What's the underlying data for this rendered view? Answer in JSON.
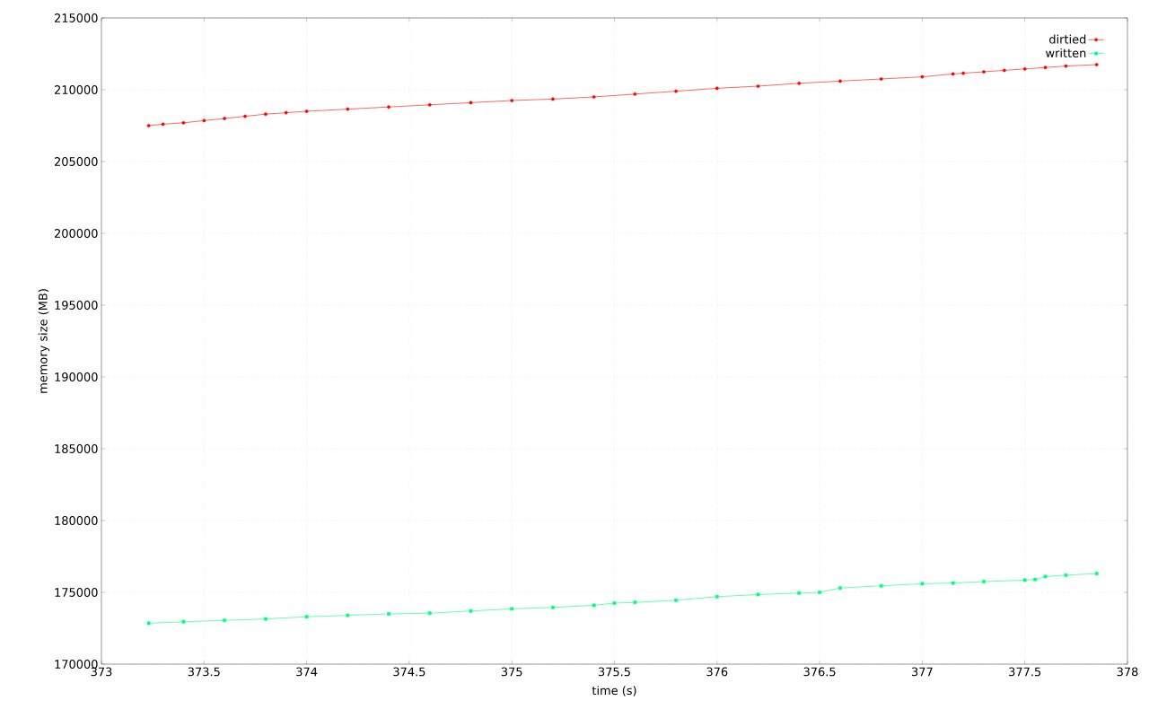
{
  "chart_data": {
    "type": "line",
    "xlabel": "time (s)",
    "ylabel": "memory size (MB)",
    "xlim": [
      373,
      378
    ],
    "xticks": [
      373,
      373.5,
      374,
      374.5,
      375,
      375.5,
      376,
      376.5,
      377,
      377.5,
      378
    ],
    "ylim": [
      170000,
      215000
    ],
    "yticks": [
      170000,
      175000,
      180000,
      185000,
      190000,
      195000,
      200000,
      205000,
      210000,
      215000
    ],
    "grid": true,
    "legend": "top right",
    "line_style": "solid",
    "series": [
      {
        "name": "dirtied",
        "color": "#ff0000",
        "marker": "circle",
        "x": [
          373.23,
          373.3,
          373.4,
          373.5,
          373.6,
          373.7,
          373.8,
          373.9,
          374.0,
          374.2,
          374.4,
          374.6,
          374.8,
          375.0,
          375.2,
          375.4,
          375.6,
          375.8,
          376.0,
          376.2,
          376.4,
          376.6,
          376.8,
          377.0,
          377.15,
          377.2,
          377.3,
          377.4,
          377.5,
          377.6,
          377.7,
          377.85
        ],
        "values": [
          207500,
          207600,
          207700,
          207850,
          208000,
          208150,
          208300,
          208400,
          208500,
          208650,
          208800,
          208950,
          209100,
          209250,
          209350,
          209500,
          209700,
          209900,
          210100,
          210250,
          210450,
          210600,
          210750,
          210900,
          211100,
          211150,
          211250,
          211350,
          211450,
          211550,
          211650,
          211750
        ]
      },
      {
        "name": "written",
        "color": "#00ff7f",
        "marker": "square",
        "x": [
          373.23,
          373.4,
          373.6,
          373.8,
          374.0,
          374.2,
          374.4,
          374.6,
          374.8,
          375.0,
          375.2,
          375.4,
          375.5,
          375.6,
          375.8,
          376.0,
          376.2,
          376.4,
          376.5,
          376.6,
          376.8,
          377.0,
          377.15,
          377.3,
          377.5,
          377.55,
          377.6,
          377.7,
          377.85
        ],
        "values": [
          172850,
          172950,
          173050,
          173150,
          173300,
          173400,
          173500,
          173550,
          173700,
          173850,
          173950,
          174100,
          174250,
          174300,
          174450,
          174700,
          174850,
          174950,
          175000,
          175300,
          175450,
          175600,
          175650,
          175750,
          175850,
          175900,
          176100,
          176200,
          176300
        ]
      }
    ]
  }
}
